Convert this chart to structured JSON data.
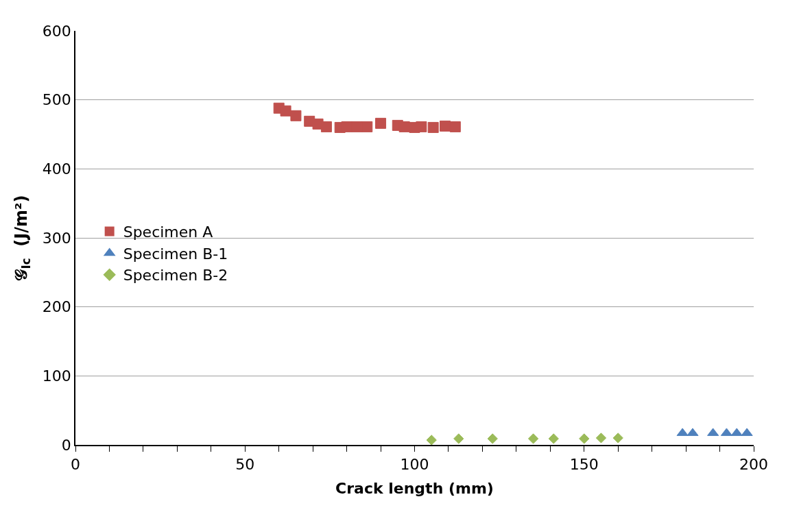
{
  "chart_data": {
    "type": "scatter",
    "xlabel": "Crack length (mm)",
    "ylabel": "𝒢$_{Ic}$  (J/m²)",
    "xlim": [
      0,
      200
    ],
    "ylim": [
      0,
      600
    ],
    "xticks": [
      0,
      {
        "value": 10,
        "label": null
      },
      {
        "value": 20,
        "label": null
      },
      {
        "value": 30,
        "label": null
      },
      {
        "value": 40,
        "label": null
      },
      50,
      {
        "value": 60,
        "label": null
      },
      {
        "value": 70,
        "label": null
      },
      {
        "value": 80,
        "label": null
      },
      {
        "value": 90,
        "label": null
      },
      100,
      {
        "value": 110,
        "label": null
      },
      {
        "value": 120,
        "label": null
      },
      {
        "value": 130,
        "label": null
      },
      {
        "value": 140,
        "label": null
      },
      150,
      {
        "value": 160,
        "label": null
      },
      {
        "value": 170,
        "label": null
      },
      {
        "value": 180,
        "label": null
      },
      {
        "value": 190,
        "label": null
      },
      200
    ],
    "yticks": [
      0,
      100,
      200,
      300,
      400,
      500,
      600
    ],
    "grid": "y",
    "legend": "left",
    "series": [
      {
        "name": "Specimen A",
        "color": "#c0504d",
        "marker": "square",
        "x": [
          60,
          62,
          65,
          69,
          71.5,
          74,
          78,
          80,
          83,
          86,
          90,
          95,
          97,
          100,
          102,
          105.5,
          109,
          112
        ],
        "values": [
          488,
          484,
          477,
          469,
          465,
          461,
          460,
          461,
          461,
          461,
          466,
          463,
          461,
          460,
          461,
          460,
          462,
          461
        ]
      },
      {
        "name": "Specimen B-1",
        "color": "#4f81bd",
        "marker": "triangle",
        "x": [
          179,
          182,
          188,
          192,
          195,
          198
        ],
        "values": [
          17,
          17,
          17,
          17,
          17,
          17
        ]
      },
      {
        "name": "Specimen B-2",
        "color": "#9bbb59",
        "marker": "diamond",
        "x": [
          105,
          113,
          123,
          135,
          141,
          150,
          155,
          160
        ],
        "values": [
          7,
          9,
          9,
          9,
          9,
          9,
          10,
          10
        ]
      }
    ]
  }
}
